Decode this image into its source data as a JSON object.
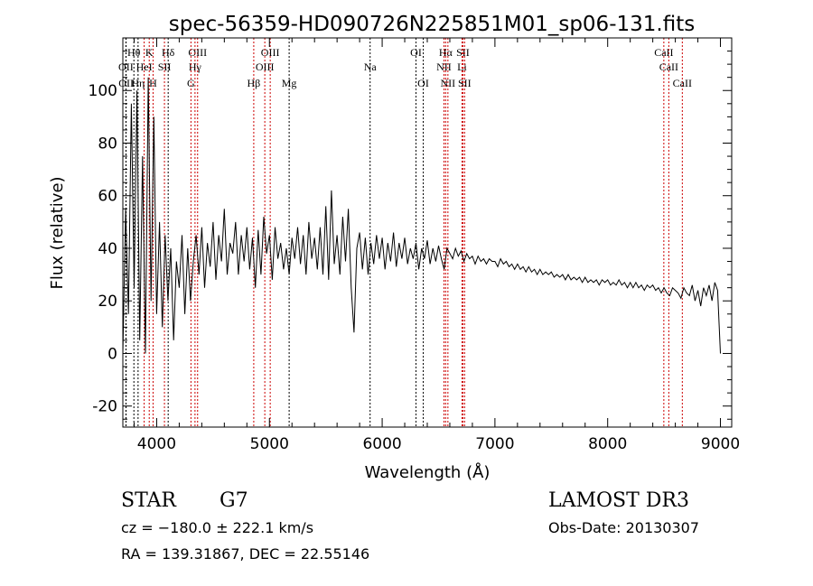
{
  "chart_data": {
    "type": "line",
    "title": "spec-56359-HD090726N225851M01_sp06-131.fits",
    "xlabel": "Wavelength (Å)",
    "ylabel": "Flux (relative)",
    "xlim": [
      3700,
      9100
    ],
    "ylim": [
      -28,
      120
    ],
    "xticks": [
      4000,
      5000,
      6000,
      7000,
      8000,
      9000
    ],
    "yticks": [
      -20,
      0,
      20,
      40,
      60,
      80,
      100
    ],
    "grid": false,
    "series": [
      {
        "name": "flux",
        "x_start": 3700,
        "x_step": 25,
        "values": [
          0,
          55,
          15,
          95,
          25,
          100,
          5,
          75,
          0,
          105,
          20,
          90,
          15,
          50,
          10,
          45,
          20,
          40,
          5,
          35,
          25,
          45,
          15,
          40,
          20,
          35,
          45,
          30,
          48,
          25,
          42,
          33,
          50,
          28,
          45,
          35,
          55,
          30,
          42,
          38,
          50,
          30,
          45,
          35,
          48,
          32,
          44,
          25,
          47,
          30,
          52,
          38,
          45,
          28,
          48,
          36,
          42,
          32,
          40,
          30,
          44,
          36,
          48,
          34,
          45,
          30,
          50,
          36,
          44,
          32,
          48,
          30,
          56,
          28,
          62,
          34,
          45,
          30,
          52,
          35,
          55,
          25,
          8,
          40,
          46,
          32,
          44,
          30,
          42,
          34,
          45,
          36,
          44,
          32,
          42,
          35,
          46,
          33,
          42,
          36,
          44,
          34,
          40,
          36,
          42,
          32,
          40,
          36,
          43,
          34,
          40,
          35,
          41,
          36,
          32,
          40,
          38,
          36,
          40,
          37,
          39,
          35,
          38,
          36,
          37,
          34,
          37,
          35,
          36,
          34,
          36,
          35,
          35,
          33,
          36,
          34,
          35,
          33,
          34,
          32,
          34,
          32,
          33,
          31,
          33,
          31,
          32,
          30,
          32,
          30,
          31,
          30,
          31,
          29,
          30,
          29,
          30,
          28,
          30,
          28,
          29,
          28,
          29,
          27,
          29,
          27,
          28,
          27,
          28,
          26,
          28,
          27,
          28,
          26,
          27,
          26,
          28,
          26,
          27,
          25,
          27,
          25,
          27,
          25,
          26,
          24,
          26,
          25,
          26,
          24,
          25,
          23,
          25,
          23,
          22,
          25,
          24,
          23,
          21,
          25,
          23,
          22,
          26,
          20,
          24,
          18,
          25,
          22,
          26,
          20,
          27,
          24,
          0
        ]
      }
    ],
    "lines": [
      {
        "w": 3798,
        "label": "Hθ",
        "row": 0,
        "color": "#000000"
      },
      {
        "w": 3934,
        "label": "K",
        "row": 0,
        "color": "#cc0000"
      },
      {
        "w": 4102,
        "label": "Hδ",
        "row": 0,
        "color": "#000000"
      },
      {
        "w": 4363,
        "label": "OIII",
        "row": 0,
        "color": "#cc0000"
      },
      {
        "w": 5007,
        "label": "OIII",
        "row": 0,
        "color": "#cc0000"
      },
      {
        "w": 6300,
        "label": "OI",
        "row": 0,
        "color": "#000000"
      },
      {
        "w": 6563,
        "label": "Hα",
        "row": 0,
        "color": "#cc0000"
      },
      {
        "w": 6716,
        "label": "SII",
        "row": 0,
        "color": "#cc0000"
      },
      {
        "w": 8498,
        "label": "CaII",
        "row": 0,
        "color": "#cc0000"
      },
      {
        "w": 3727,
        "label": "OII",
        "row": 1,
        "color": "#000000"
      },
      {
        "w": 3889,
        "label": "HeI",
        "row": 1,
        "color": "#cc0000"
      },
      {
        "w": 4069,
        "label": "SII",
        "row": 1,
        "color": "#cc0000"
      },
      {
        "w": 4340,
        "label": "Hγ",
        "row": 1,
        "color": "#cc0000"
      },
      {
        "w": 4959,
        "label": "OIII",
        "row": 1,
        "color": "#cc0000"
      },
      {
        "w": 5893,
        "label": "Na",
        "row": 1,
        "color": "#000000"
      },
      {
        "w": 6548,
        "label": "NII",
        "row": 1,
        "color": "#cc0000"
      },
      {
        "w": 6708,
        "label": "Li",
        "row": 1,
        "color": "#cc0000"
      },
      {
        "w": 8542,
        "label": "CaII",
        "row": 1,
        "color": "#cc0000"
      },
      {
        "w": 3729,
        "label": "OII",
        "row": 2,
        "color": "#000000"
      },
      {
        "w": 3835,
        "label": "Hη",
        "row": 2,
        "color": "#000000"
      },
      {
        "w": 3968,
        "label": "H",
        "row": 2,
        "color": "#cc0000"
      },
      {
        "w": 4304,
        "label": "G",
        "row": 2,
        "color": "#cc0000"
      },
      {
        "w": 4861,
        "label": "Hβ",
        "row": 2,
        "color": "#cc0000"
      },
      {
        "w": 5175,
        "label": "Mg",
        "row": 2,
        "color": "#000000"
      },
      {
        "w": 6364,
        "label": "OI",
        "row": 2,
        "color": "#000000"
      },
      {
        "w": 6583,
        "label": "NII",
        "row": 2,
        "color": "#cc0000"
      },
      {
        "w": 6731,
        "label": "SII",
        "row": 2,
        "color": "#cc0000"
      },
      {
        "w": 8662,
        "label": "CaII",
        "row": 2,
        "color": "#cc0000"
      }
    ]
  },
  "info": {
    "object_class": "STAR",
    "subclass": "G7",
    "cz": "cz = −180.0 ± 222.1 km/s",
    "radec": "RA = 139.31867, DEC =  22.55146",
    "survey": "LAMOST DR3",
    "obs_date": "Obs-Date: 20130307"
  }
}
